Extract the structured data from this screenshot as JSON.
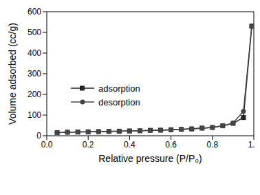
{
  "chart_data": {
    "type": "line",
    "xlabel": "Relative pressure (P/P₀)",
    "ylabel": "Volume adsorbed (cc/g)",
    "xlim": [
      0,
      1
    ],
    "xticks": [
      {
        "value": 0,
        "label": "0.0"
      },
      {
        "value": 0.2,
        "label": "0.2"
      },
      {
        "value": 0.4,
        "label": "0.4"
      },
      {
        "value": 0.6,
        "label": "0.6"
      },
      {
        "value": 0.8,
        "label": "0.8"
      },
      {
        "value": 1,
        "label": "1.0"
      }
    ],
    "ylim": [
      0,
      600
    ],
    "yticks": [
      0,
      100,
      200,
      300,
      400,
      500,
      600
    ],
    "legend": "left",
    "x": [
      0.05,
      0.1,
      0.15,
      0.2,
      0.25,
      0.3,
      0.35,
      0.4,
      0.45,
      0.5,
      0.55,
      0.6,
      0.65,
      0.7,
      0.75,
      0.8,
      0.85,
      0.9,
      0.95,
      0.99
    ],
    "series": [
      {
        "name": "adsorption",
        "color": "#222222",
        "marker": "square",
        "values": [
          15,
          17,
          18,
          19,
          20,
          21,
          22,
          23,
          24,
          26,
          27,
          29,
          31,
          33,
          37,
          40,
          48,
          60,
          88,
          530
        ]
      },
      {
        "name": "desorption",
        "color": "#444444",
        "marker": "circle",
        "values": [
          15,
          17,
          18,
          19,
          20,
          21,
          22,
          23,
          24,
          26,
          27,
          29,
          31,
          33,
          37,
          40,
          48,
          62,
          118,
          530
        ]
      }
    ]
  }
}
